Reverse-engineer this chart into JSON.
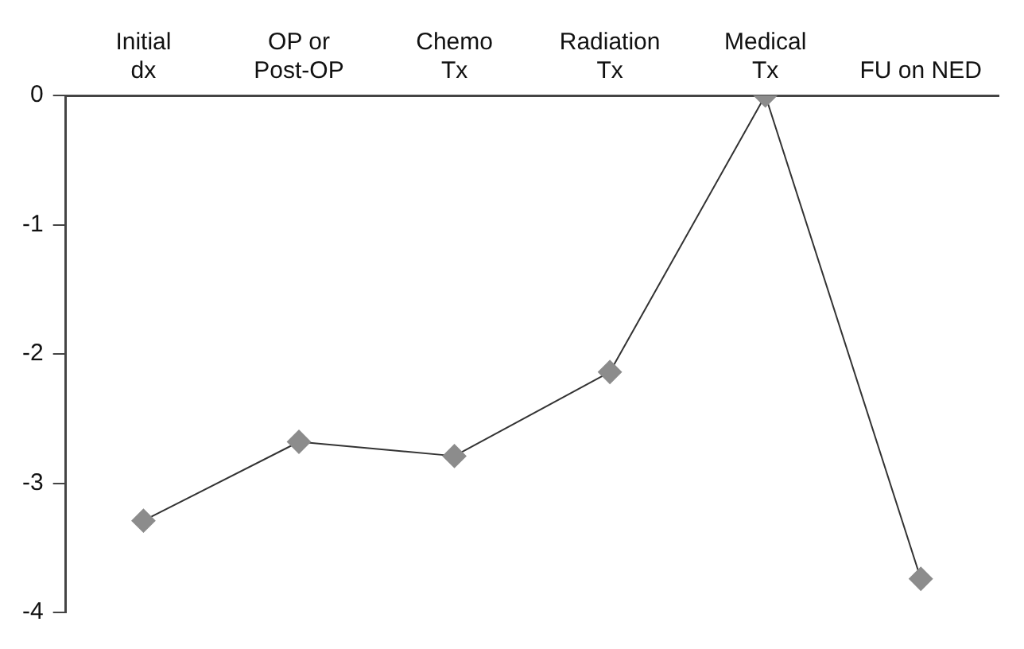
{
  "chart_data": {
    "type": "line",
    "categories": [
      "Initial\ndx",
      "OP or\nPost-OP",
      "Chemo\nTx",
      "Radiation\nTx",
      "Medical\nTx",
      "FU on NED"
    ],
    "series": [
      {
        "color": "#8c8c8c",
        "values": [
          -3.29,
          -2.68,
          -2.79,
          -2.14,
          0,
          -3.74
        ]
      }
    ],
    "ylim": [
      -4,
      0
    ],
    "yticks": [
      -4,
      -3,
      -2,
      -1,
      0
    ],
    "grid": false,
    "legend": false,
    "marker": "diamond",
    "line_style": "solid"
  }
}
